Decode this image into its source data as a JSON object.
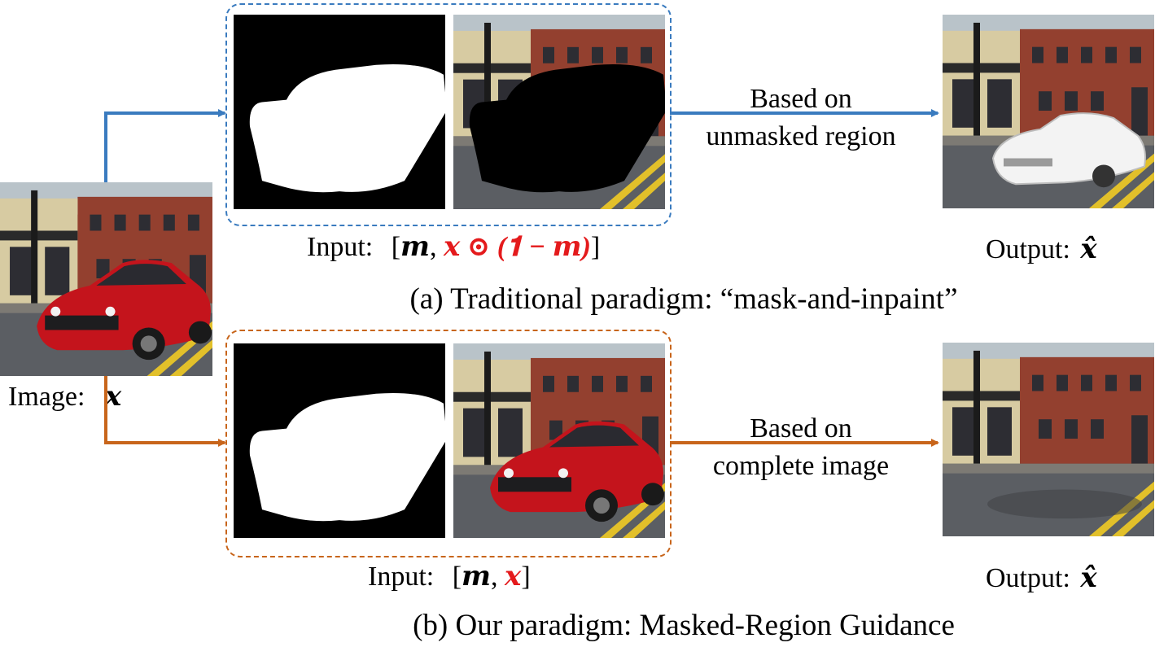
{
  "colors": {
    "blue": "#3a7bbf",
    "orange": "#c8651b",
    "red_math": "#e41a1c",
    "car_red": "#c4141c",
    "brick": "#8e3a2a",
    "mask_white": "#ffffff",
    "mask_black": "#000000"
  },
  "source": {
    "label_text": "Image:",
    "label_symbol": "𝒙"
  },
  "panel_a": {
    "input_label": "Input:",
    "formula": {
      "open": "[",
      "m": "𝒎",
      "comma": ",",
      "red_part": "𝒙 ⊙ (𝟏 − 𝒎)",
      "close": "]"
    },
    "arrow_text_line1": "Based on",
    "arrow_text_line2": "unmasked region",
    "output_label": "Output:",
    "output_symbol": "𝒙̂",
    "caption": "(a) Traditional paradigm: “mask-and-inpaint”"
  },
  "panel_b": {
    "input_label": "Input:",
    "formula": {
      "open": "[",
      "m": "𝒎",
      "comma": ",",
      "red_part": "𝒙",
      "close": "]"
    },
    "arrow_text_line1": "Based on",
    "arrow_text_line2": "complete image",
    "output_label": "Output:",
    "output_symbol": "𝒙̂",
    "caption": "(b) Our paradigm: Masked-Region Guidance"
  }
}
